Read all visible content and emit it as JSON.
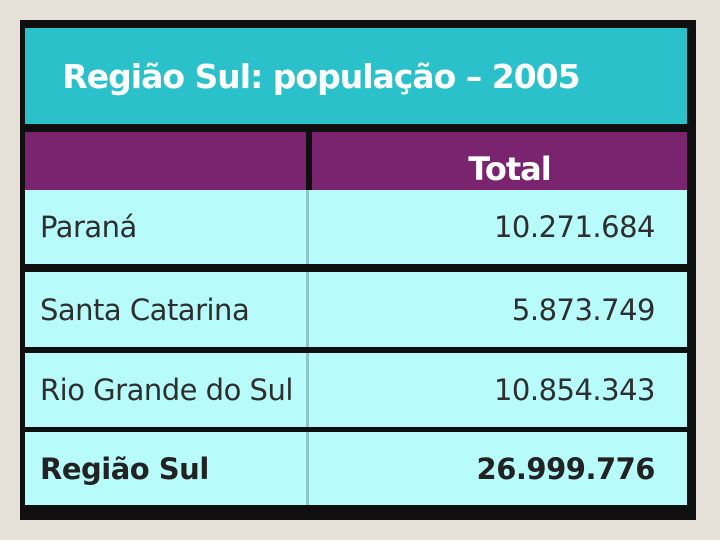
{
  "title": "Região Sul: população – 2005",
  "header": {
    "left": "",
    "total": "Total"
  },
  "rows": [
    {
      "name": "Paraná",
      "value": "10.271.684"
    },
    {
      "name": "Santa Catarina",
      "value": "5.873.749"
    },
    {
      "name": "Rio Grande do Sul",
      "value": "10.854.343"
    },
    {
      "name": "Região Sul",
      "value": "26.999.776"
    }
  ],
  "colors": {
    "title_bg": "#2ac1cb",
    "header_bg": "#7a236f",
    "row_bg": "#b7fbfb",
    "border": "#0f0f0f"
  }
}
